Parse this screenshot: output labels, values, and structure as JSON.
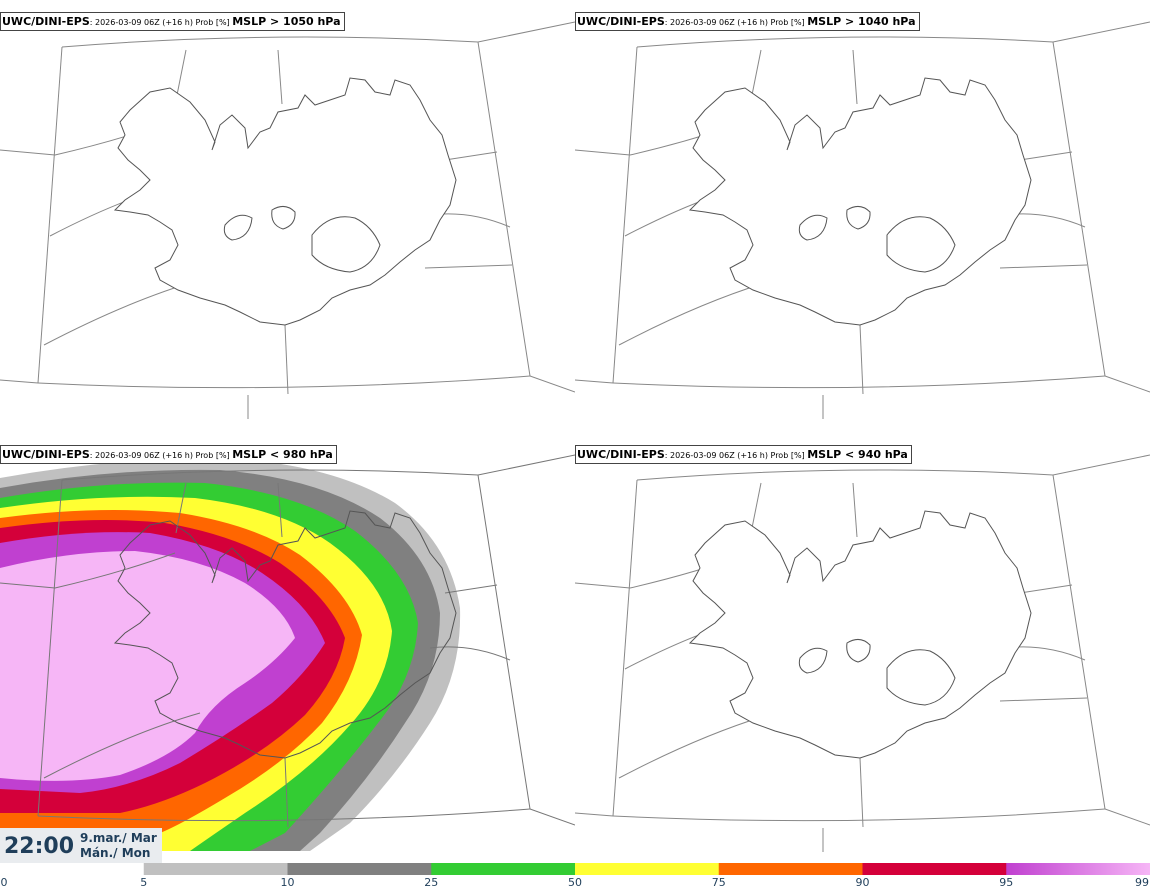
{
  "panels": [
    {
      "model": "UWC/DINI-EPS",
      "run": ": 2026-03-09 06Z (+16 h) Prob [%] ",
      "threshold": "MSLP > 1050 hPa"
    },
    {
      "model": "UWC/DINI-EPS",
      "run": ": 2026-03-09 06Z (+16 h) Prob [%] ",
      "threshold": "MSLP > 1040 hPa"
    },
    {
      "model": "UWC/DINI-EPS",
      "run": ": 2026-03-09 06Z (+16 h) Prob [%] ",
      "threshold": "MSLP < 980 hPa"
    },
    {
      "model": "UWC/DINI-EPS",
      "run": ": 2026-03-09 06Z (+16 h) Prob [%] ",
      "threshold": "MSLP < 940 hPa"
    }
  ],
  "valid_time": {
    "time": "22:00",
    "date_line1": "9.mar./ Mar",
    "date_line2": "Mán./ Mon"
  },
  "legend": {
    "ticks": [
      "0",
      "5",
      "10",
      "25",
      "50",
      "75",
      "90",
      "95",
      "99"
    ],
    "colors": [
      "#ffffff",
      "#c0c0c0",
      "#808080",
      "#33cc33",
      "#ffff33",
      "#ff6600",
      "#d4003a",
      "#c040d0",
      "#f6b6f6"
    ]
  },
  "field_colors": {
    "p5": "#c0c0c0",
    "p10": "#808080",
    "p25": "#33cc33",
    "p50": "#ffff33",
    "p75": "#ff6600",
    "p90": "#d4003a",
    "p95": "#c040d0",
    "p99": "#f6b6f6"
  }
}
